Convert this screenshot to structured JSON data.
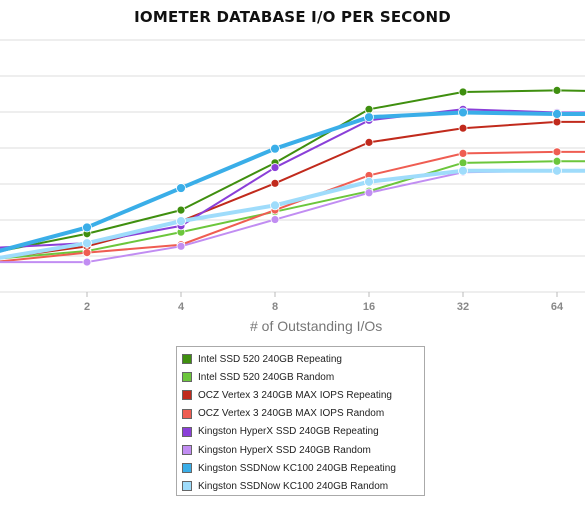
{
  "chart_data": {
    "type": "line",
    "title": "IOMETER DATABASE I/O PER SECOND",
    "xlabel": "# of Outstanding I/Os",
    "ylabel": "",
    "x": [
      1,
      2,
      4,
      8,
      16,
      32,
      64,
      128
    ],
    "x_tick_labels": [
      "2",
      "4",
      "8",
      "16",
      "32",
      "64"
    ],
    "x_tick_values": [
      2,
      4,
      8,
      16,
      32,
      64
    ],
    "xscale": "log2",
    "y_tick_labels": [],
    "ylim": [
      0,
      8
    ],
    "grid": true,
    "legend_position": "bottom",
    "series": [
      {
        "name": "Intel SSD 520 240GB Repeating",
        "color": "#3f8f0f",
        "width": 2,
        "values": [
          1.25,
          1.85,
          2.6,
          4.1,
          5.8,
          6.35,
          6.4,
          6.35
        ]
      },
      {
        "name": "Intel SSD 520 240GB Random",
        "color": "#6cc63c",
        "width": 2,
        "values": [
          1.05,
          1.3,
          1.9,
          2.55,
          3.2,
          4.1,
          4.15,
          4.15
        ]
      },
      {
        "name": "OCZ Vertex 3 240GB MAX IOPS Repeating",
        "color": "#c12a1c",
        "width": 2,
        "values": [
          1.05,
          1.45,
          2.25,
          3.45,
          4.75,
          5.2,
          5.4,
          5.4
        ]
      },
      {
        "name": "OCZ Vertex 3 240GB MAX IOPS Random",
        "color": "#ef5d52",
        "width": 2,
        "values": [
          0.95,
          1.25,
          1.5,
          2.6,
          3.7,
          4.4,
          4.45,
          4.45
        ]
      },
      {
        "name": "Kingston HyperX SSD 240GB Repeating",
        "color": "#8a3fd8",
        "width": 2,
        "values": [
          1.4,
          1.55,
          2.1,
          3.95,
          5.45,
          5.8,
          5.7,
          5.7
        ]
      },
      {
        "name": "Kingston HyperX SSD 240GB Random",
        "color": "#c18df2",
        "width": 2,
        "values": [
          0.95,
          0.95,
          1.45,
          2.3,
          3.15,
          3.8,
          3.85,
          3.85
        ]
      },
      {
        "name": "Kingston SSDNow KC100 240GB Repeating",
        "color": "#3aaee8",
        "width": 4,
        "values": [
          1.25,
          2.05,
          3.3,
          4.55,
          5.55,
          5.7,
          5.65,
          5.65
        ]
      },
      {
        "name": "Kingston SSDNow KC100 240GB Random",
        "color": "#9fdcfb",
        "width": 4,
        "values": [
          1.05,
          1.55,
          2.25,
          2.75,
          3.5,
          3.85,
          3.85,
          3.85
        ]
      }
    ]
  }
}
